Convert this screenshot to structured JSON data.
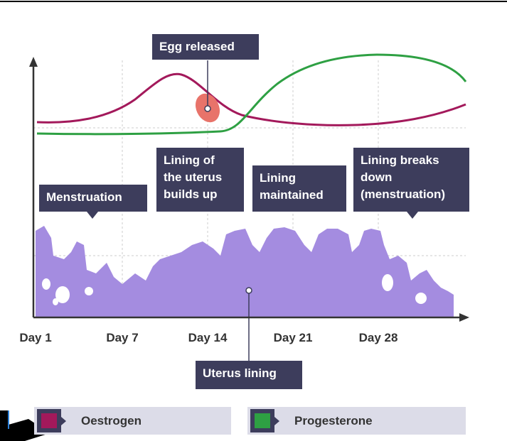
{
  "labels": {
    "egg_released": [
      "Egg released"
    ],
    "menstruation": [
      "Menstruation"
    ],
    "lining_builds": [
      "Lining of",
      "the uterus",
      "builds up"
    ],
    "lining_maintained": [
      "Lining",
      "maintained"
    ],
    "lining_breaks": [
      "Lining breaks",
      "down",
      "(menstruation)"
    ],
    "uterus_lining": [
      "Uterus lining"
    ]
  },
  "x_axis": [
    "Day 1",
    "Day 7",
    "Day 14",
    "Day 21",
    "Day 28"
  ],
  "legend": [
    "Oestrogen",
    "Progesterone"
  ]
}
